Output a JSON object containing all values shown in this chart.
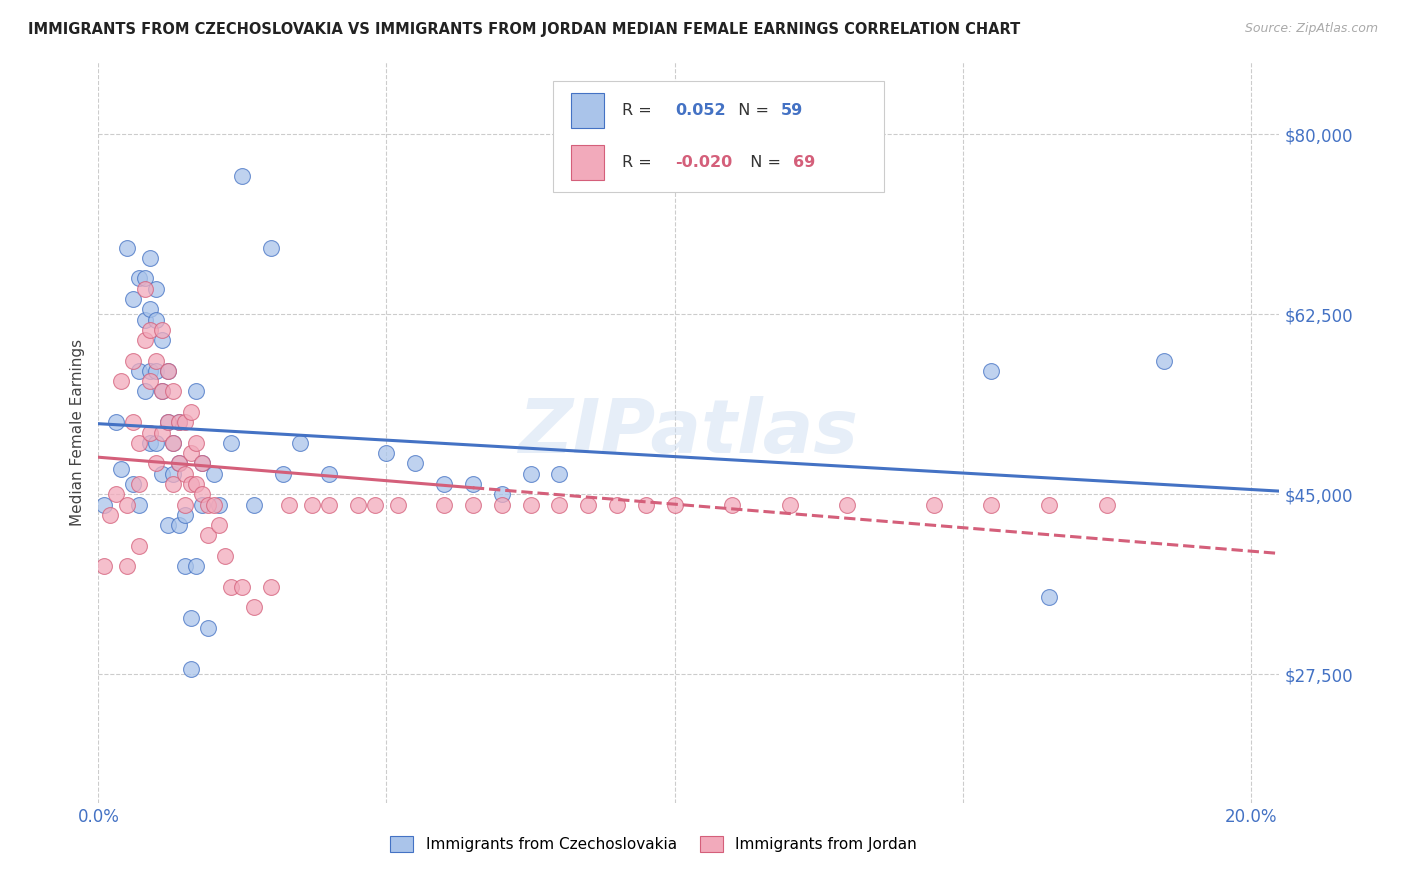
{
  "title": "IMMIGRANTS FROM CZECHOSLOVAKIA VS IMMIGRANTS FROM JORDAN MEDIAN FEMALE EARNINGS CORRELATION CHART",
  "source": "Source: ZipAtlas.com",
  "ylabel": "Median Female Earnings",
  "xlim": [
    0.0,
    0.205
  ],
  "ylim": [
    15000,
    87000
  ],
  "yticks": [
    27500,
    45000,
    62500,
    80000
  ],
  "ytick_labels": [
    "$27,500",
    "$45,000",
    "$62,500",
    "$80,000"
  ],
  "xticks": [
    0.0,
    0.05,
    0.1,
    0.15,
    0.2
  ],
  "xtick_labels": [
    "0.0%",
    "",
    "",
    "",
    "20.0%"
  ],
  "legend_r_czech": "0.052",
  "legend_n_czech": "59",
  "legend_r_jordan": "-0.020",
  "legend_n_jordan": "69",
  "color_czech": "#aac4ea",
  "color_jordan": "#f2aabb",
  "line_color_czech": "#4472c4",
  "line_color_jordan": "#d45f7a",
  "watermark": "ZIPatlas",
  "background_color": "#ffffff",
  "czech_x": [
    0.001,
    0.003,
    0.004,
    0.005,
    0.006,
    0.006,
    0.007,
    0.007,
    0.007,
    0.008,
    0.008,
    0.008,
    0.009,
    0.009,
    0.009,
    0.009,
    0.01,
    0.01,
    0.01,
    0.01,
    0.011,
    0.011,
    0.011,
    0.012,
    0.012,
    0.012,
    0.013,
    0.013,
    0.014,
    0.014,
    0.014,
    0.015,
    0.015,
    0.016,
    0.016,
    0.017,
    0.017,
    0.018,
    0.018,
    0.019,
    0.02,
    0.021,
    0.023,
    0.025,
    0.027,
    0.03,
    0.032,
    0.035,
    0.04,
    0.05,
    0.055,
    0.06,
    0.065,
    0.07,
    0.075,
    0.08,
    0.155,
    0.165,
    0.185
  ],
  "czech_y": [
    44000,
    52000,
    47500,
    69000,
    64000,
    46000,
    66000,
    57000,
    44000,
    66000,
    62000,
    55000,
    68000,
    63000,
    57000,
    50000,
    65000,
    62000,
    57000,
    50000,
    60000,
    55000,
    47000,
    57000,
    52000,
    42000,
    50000,
    47000,
    52000,
    48000,
    42000,
    43000,
    38000,
    33000,
    28000,
    55000,
    38000,
    48000,
    44000,
    32000,
    47000,
    44000,
    50000,
    76000,
    44000,
    69000,
    47000,
    50000,
    47000,
    49000,
    48000,
    46000,
    46000,
    45000,
    47000,
    47000,
    57000,
    35000,
    58000
  ],
  "jordan_x": [
    0.001,
    0.002,
    0.003,
    0.004,
    0.005,
    0.005,
    0.006,
    0.006,
    0.007,
    0.007,
    0.007,
    0.008,
    0.008,
    0.009,
    0.009,
    0.009,
    0.01,
    0.01,
    0.011,
    0.011,
    0.011,
    0.012,
    0.012,
    0.013,
    0.013,
    0.013,
    0.014,
    0.014,
    0.015,
    0.015,
    0.015,
    0.016,
    0.016,
    0.016,
    0.017,
    0.017,
    0.018,
    0.018,
    0.019,
    0.019,
    0.02,
    0.021,
    0.022,
    0.023,
    0.025,
    0.027,
    0.03,
    0.033,
    0.037,
    0.04,
    0.045,
    0.048,
    0.052,
    0.06,
    0.065,
    0.07,
    0.075,
    0.08,
    0.085,
    0.09,
    0.095,
    0.1,
    0.11,
    0.12,
    0.13,
    0.145,
    0.155,
    0.165,
    0.175
  ],
  "jordan_y": [
    38000,
    43000,
    45000,
    56000,
    44000,
    38000,
    58000,
    52000,
    50000,
    46000,
    40000,
    65000,
    60000,
    61000,
    56000,
    51000,
    58000,
    48000,
    61000,
    55000,
    51000,
    57000,
    52000,
    55000,
    50000,
    46000,
    52000,
    48000,
    52000,
    47000,
    44000,
    53000,
    49000,
    46000,
    50000,
    46000,
    48000,
    45000,
    44000,
    41000,
    44000,
    42000,
    39000,
    36000,
    36000,
    34000,
    36000,
    44000,
    44000,
    44000,
    44000,
    44000,
    44000,
    44000,
    44000,
    44000,
    44000,
    44000,
    44000,
    44000,
    44000,
    44000,
    44000,
    44000,
    44000,
    44000,
    44000,
    44000,
    44000
  ],
  "jordan_solid_xlim": [
    0.0,
    0.065
  ],
  "jordan_dashed_xlim": [
    0.065,
    0.205
  ]
}
